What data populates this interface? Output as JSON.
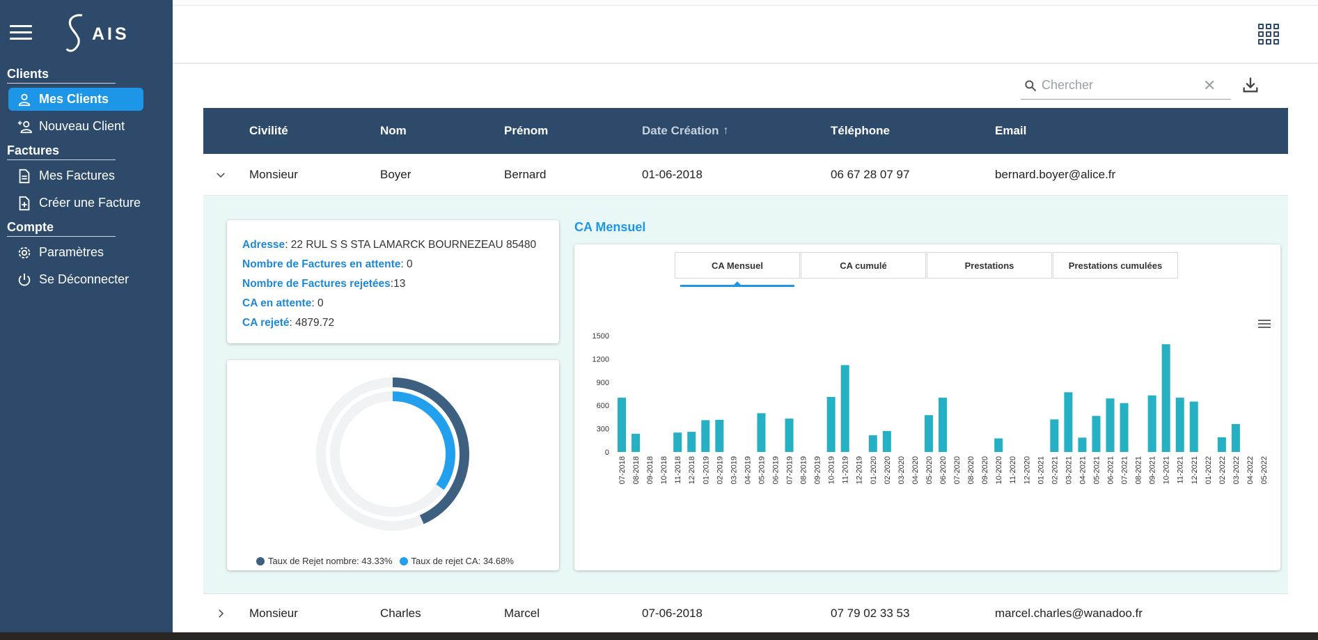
{
  "sidebar": {
    "logo_text": "AIS",
    "sections": {
      "clients": "Clients",
      "factures": "Factures",
      "compte": "Compte"
    },
    "items": {
      "mes_clients": "Mes Clients",
      "nouveau_client": "Nouveau Client",
      "mes_factures": "Mes Factures",
      "creer_facture": "Créer une Facture",
      "parametres": "Paramètres",
      "deconnecter": "Se Déconnecter"
    }
  },
  "search": {
    "placeholder": "Chercher",
    "value": ""
  },
  "table": {
    "headers": {
      "civilite": "Civilité",
      "nom": "Nom",
      "prenom": "Prénom",
      "date": "Date Création",
      "sort_indicator": "↑",
      "telephone": "Téléphone",
      "email": "Email"
    },
    "rows": [
      {
        "civilite": "Monsieur",
        "nom": "Boyer",
        "prenom": "Bernard",
        "date": "01-06-2018",
        "telephone": "06 67 28 07 97",
        "email": "bernard.boyer@alice.fr",
        "expanded": true
      },
      {
        "civilite": "Monsieur",
        "nom": "Charles",
        "prenom": "Marcel",
        "date": "07-06-2018",
        "telephone": "07 79 02 33 53",
        "email": "marcel.charles@wanadoo.fr",
        "expanded": false
      }
    ]
  },
  "details": {
    "adresse_label": "Adresse",
    "adresse_value": " : 22 RUL S S STA LAMARCK BOURNEZEAU 85480",
    "attente_label": "Nombre de Factures en attente",
    "attente_value": " : 0",
    "rejetees_label": "Nombre de Factures rejetées",
    "rejetees_value": " :13",
    "ca_attente_label": "CA en attente",
    "ca_attente_value": " : 0",
    "ca_rejete_label": "CA rejeté",
    "ca_rejete_value": " : 4879.72"
  },
  "donut": {
    "legend": [
      {
        "label": "Taux de Rejet nombre: 43.33%",
        "color": "#3d5f80"
      },
      {
        "label": "Taux de rejet CA: 34.68%",
        "color": "#22a0ee"
      }
    ],
    "values": [
      43.33,
      34.68
    ],
    "track_color": "#f1f2f3"
  },
  "chart_tabs": {
    "title": "CA Mensuel",
    "tabs": [
      "CA Mensuel",
      "CA cumulé",
      "Prestations",
      "Prestations cumulées"
    ],
    "active": 0
  },
  "colors": {
    "accent": "#1e96e8",
    "sidebar": "#2d4a6b",
    "bar": "#26b0c4"
  },
  "chart_data": {
    "type": "bar",
    "title": "",
    "xlabel": "",
    "ylabel": "",
    "ylim": [
      0,
      1500
    ],
    "yticks": [
      0,
      300,
      600,
      900,
      1200,
      1500
    ],
    "categories": [
      "07-2018",
      "08-2018",
      "09-2018",
      "10-2018",
      "11-2018",
      "12-2018",
      "01-2019",
      "02-2019",
      "03-2019",
      "04-2019",
      "05-2019",
      "06-2019",
      "07-2019",
      "08-2019",
      "09-2019",
      "10-2019",
      "11-2019",
      "12-2019",
      "01-2020",
      "02-2020",
      "03-2020",
      "04-2020",
      "05-2020",
      "06-2020",
      "07-2020",
      "08-2020",
      "09-2020",
      "10-2020",
      "11-2020",
      "12-2020",
      "01-2021",
      "02-2021",
      "03-2021",
      "04-2021",
      "05-2021",
      "06-2021",
      "07-2021",
      "08-2021",
      "09-2021",
      "10-2021",
      "11-2021",
      "12-2021",
      "01-2022",
      "02-2022",
      "03-2022",
      "04-2022",
      "05-2022"
    ],
    "values": [
      700,
      235,
      0,
      0,
      250,
      260,
      410,
      415,
      0,
      0,
      500,
      0,
      430,
      0,
      0,
      710,
      1120,
      0,
      215,
      270,
      0,
      0,
      475,
      700,
      0,
      0,
      0,
      175,
      0,
      0,
      0,
      420,
      770,
      185,
      465,
      690,
      630,
      0,
      730,
      1390,
      700,
      650,
      0,
      190,
      360,
      0,
      0
    ],
    "grid": false,
    "legend": "none"
  }
}
